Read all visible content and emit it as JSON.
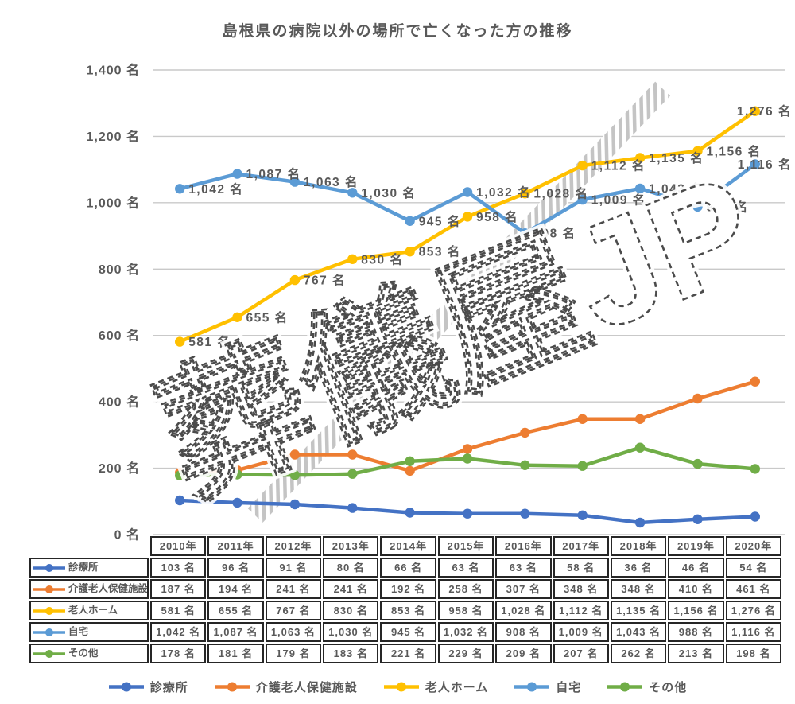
{
  "title": "島根県の病院以外の場所で亡くなった方の推移",
  "watermark": {
    "text": "葬儀屋JP"
  },
  "chart_data": {
    "type": "line",
    "title": "島根県の病院以外の場所で亡くなった方の推移",
    "categories": [
      "2010年",
      "2011年",
      "2012年",
      "2013年",
      "2014年",
      "2015年",
      "2016年",
      "2017年",
      "2018年",
      "2019年",
      "2020年"
    ],
    "series": [
      {
        "name": "診療所",
        "slug": "clinic",
        "color": "#4472C4",
        "values": [
          103,
          96,
          91,
          80,
          66,
          63,
          63,
          58,
          36,
          46,
          54
        ],
        "show_labels": false
      },
      {
        "name": "介護老人保健施設",
        "slug": "geriatric-health-facility",
        "color": "#ED7D31",
        "values": [
          187,
          194,
          241,
          241,
          192,
          258,
          307,
          348,
          348,
          410,
          461
        ],
        "show_labels": false
      },
      {
        "name": "老人ホーム",
        "slug": "nursing-home",
        "color": "#FFC000",
        "values": [
          581,
          655,
          767,
          830,
          853,
          958,
          1028,
          1112,
          1135,
          1156,
          1276
        ],
        "show_labels": true
      },
      {
        "name": "自宅",
        "slug": "home",
        "color": "#5B9BD5",
        "values": [
          1042,
          1087,
          1063,
          1030,
          945,
          1032,
          908,
          1009,
          1043,
          988,
          1116
        ],
        "show_labels": true
      },
      {
        "name": "その他",
        "slug": "other",
        "color": "#70AD47",
        "values": [
          178,
          181,
          179,
          183,
          221,
          229,
          209,
          207,
          262,
          213,
          198
        ],
        "show_labels": false
      }
    ],
    "ylim": [
      0,
      1400
    ],
    "ytick_step": 200,
    "value_suffix": " 名",
    "grid": true,
    "legend_position": "bottom"
  }
}
